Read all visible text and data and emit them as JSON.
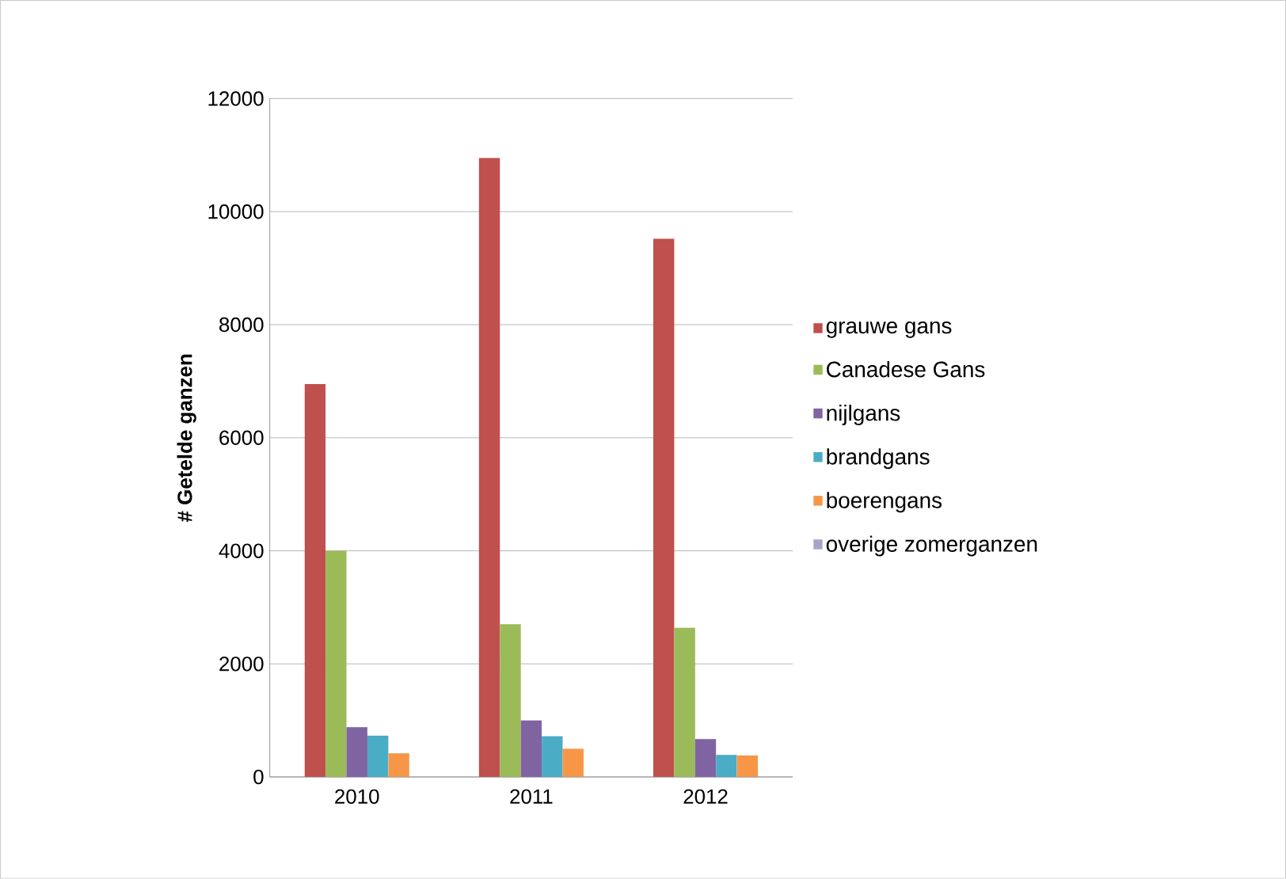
{
  "chart_data": {
    "type": "bar",
    "ylabel": "# Getelde ganzen",
    "categories": [
      "2010",
      "2011",
      "2012"
    ],
    "series": [
      {
        "name": "grauwe gans",
        "color": "#c0504d",
        "values": [
          6950,
          10950,
          9520
        ]
      },
      {
        "name": "Canadese Gans",
        "color": "#9bbb59",
        "values": [
          4000,
          2700,
          2640
        ]
      },
      {
        "name": "nijlgans",
        "color": "#8064a2",
        "values": [
          880,
          1000,
          670
        ]
      },
      {
        "name": "brandgans",
        "color": "#4bacc6",
        "values": [
          730,
          720,
          390
        ]
      },
      {
        "name": "boerengans",
        "color": "#f79646",
        "values": [
          420,
          500,
          380
        ]
      },
      {
        "name": "overige zomerganzen",
        "color": "#a5a5c8",
        "values": [
          null,
          null,
          null
        ]
      }
    ],
    "ylim": [
      0,
      12000
    ],
    "yticks": [
      0,
      2000,
      4000,
      6000,
      8000,
      10000,
      12000
    ],
    "grid": "y",
    "legend": "right"
  }
}
